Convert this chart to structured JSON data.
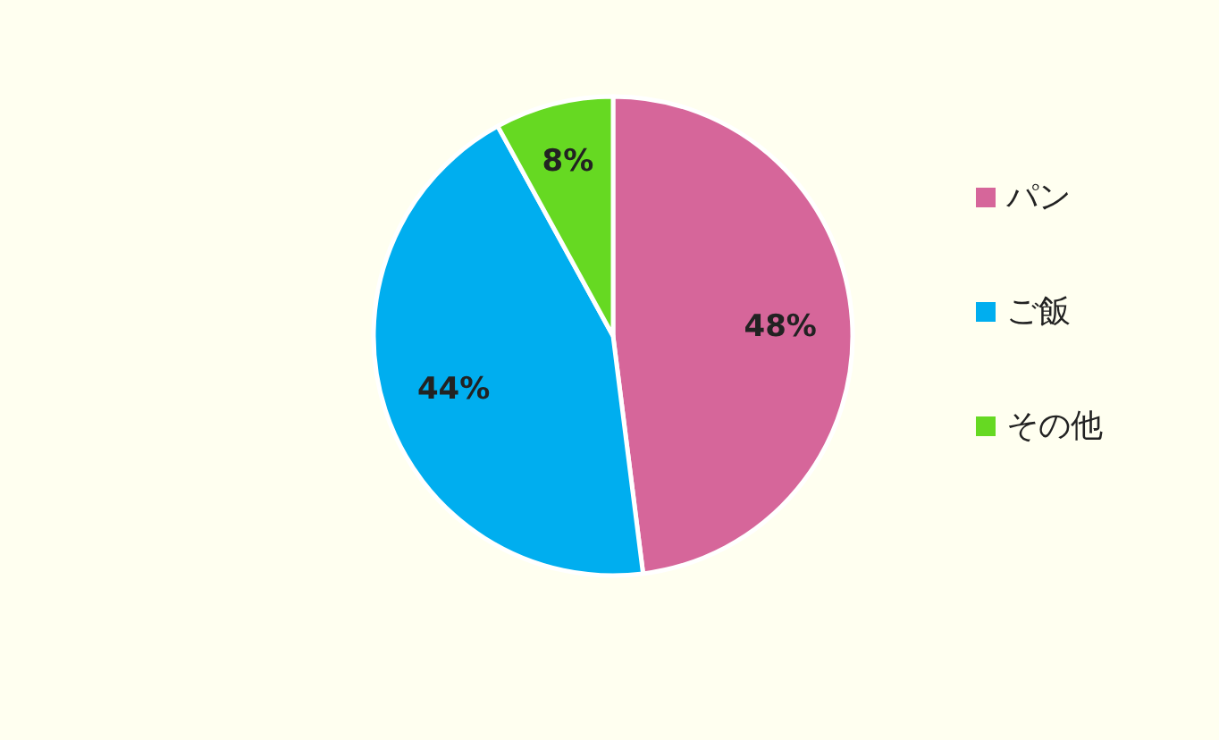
{
  "chart_data": {
    "type": "pie",
    "categories": [
      "パン",
      "ご飯",
      "その他"
    ],
    "values": [
      48,
      44,
      8
    ],
    "colors": [
      "#d6669a",
      "#00aeef",
      "#66d922"
    ],
    "value_labels": [
      "48%",
      "44%",
      "8%"
    ],
    "legend": "right"
  }
}
